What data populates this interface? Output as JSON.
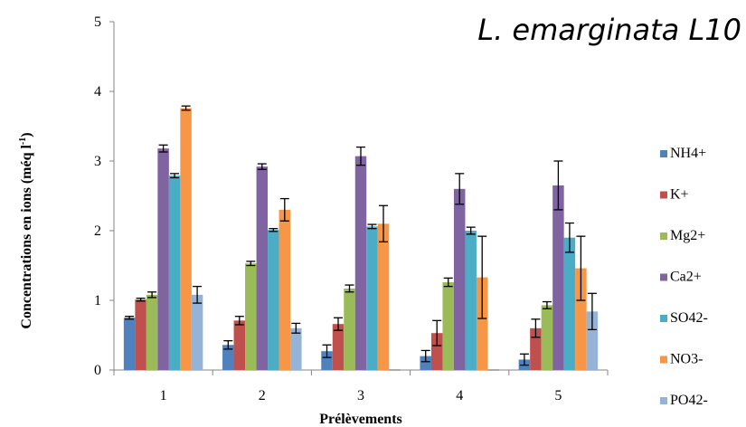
{
  "chart_data": {
    "type": "bar",
    "title": "L. emarginata L10",
    "xlabel": "Prélèvements",
    "ylabel": "Concentrations en ions (méq l",
    "ylabel_sup": "-1",
    "ylabel_close": ")",
    "ylim": [
      0,
      5
    ],
    "yticks": [
      "0",
      "1",
      "2",
      "3",
      "4",
      "5"
    ],
    "grid": false,
    "legend_position": "right",
    "categories": [
      "1",
      "2",
      "3",
      "4",
      "5"
    ],
    "series": [
      {
        "name": "NH4+",
        "color": "#4f81bd",
        "values": [
          0.75,
          0.36,
          0.27,
          0.2,
          0.15
        ],
        "errors": [
          0.02,
          0.06,
          0.09,
          0.08,
          0.08
        ]
      },
      {
        "name": "K+",
        "color": "#c0504d",
        "values": [
          1.01,
          0.71,
          0.66,
          0.53,
          0.6
        ],
        "errors": [
          0.02,
          0.06,
          0.09,
          0.18,
          0.13
        ]
      },
      {
        "name": "Mg2+",
        "color": "#9bbb59",
        "values": [
          1.08,
          1.53,
          1.17,
          1.26,
          0.93
        ],
        "errors": [
          0.04,
          0.03,
          0.05,
          0.06,
          0.05
        ]
      },
      {
        "name": "Ca2+",
        "color": "#8064a2",
        "values": [
          3.18,
          2.92,
          3.07,
          2.6,
          2.65
        ],
        "errors": [
          0.05,
          0.04,
          0.13,
          0.22,
          0.35
        ]
      },
      {
        "name": "SO42-",
        "color": "#4bacc6",
        "values": [
          2.79,
          2.01,
          2.06,
          2.0,
          1.9
        ],
        "errors": [
          0.03,
          0.02,
          0.03,
          0.05,
          0.21
        ]
      },
      {
        "name": "NO3-",
        "color": "#f79646",
        "values": [
          3.76,
          2.3,
          2.1,
          1.33,
          1.46
        ],
        "errors": [
          0.03,
          0.16,
          0.26,
          0.59,
          0.46
        ]
      },
      {
        "name": "PO42-",
        "color": "#95b3d7",
        "values": [
          1.08,
          0.6,
          0.0,
          0.0,
          0.84
        ],
        "errors": [
          0.12,
          0.07,
          0.0,
          0.0,
          0.26
        ]
      }
    ]
  }
}
